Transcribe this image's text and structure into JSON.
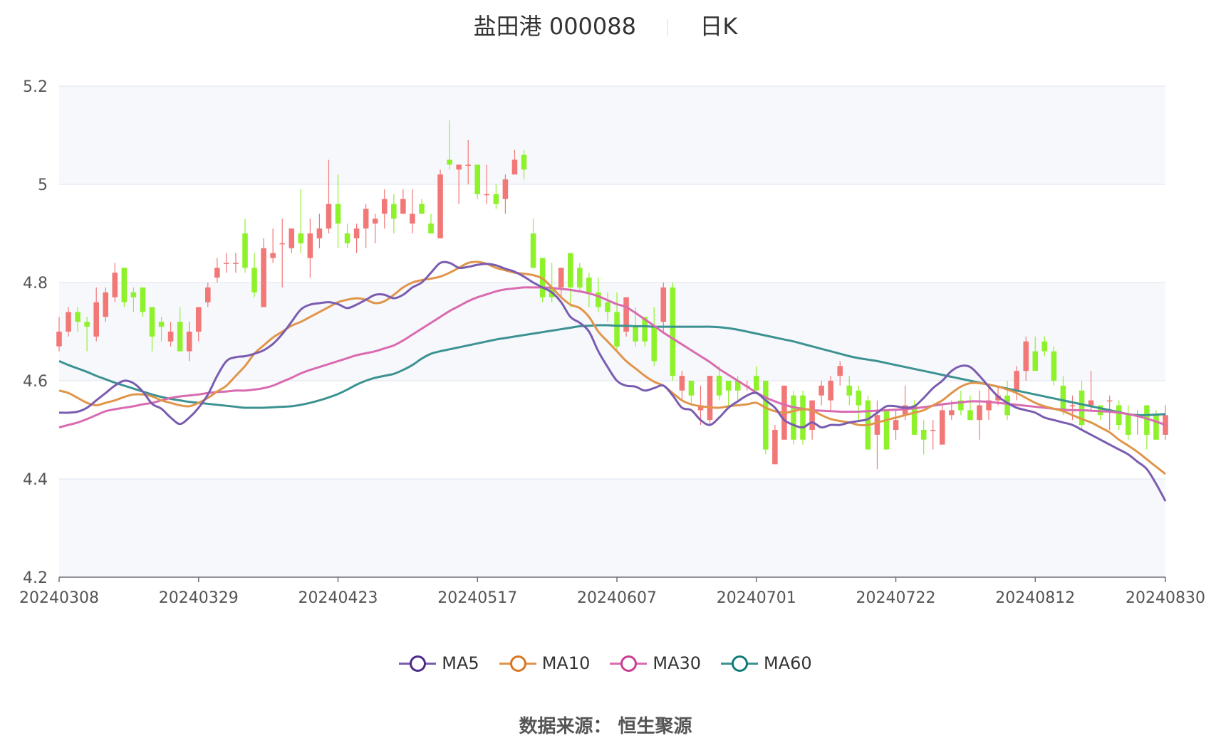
{
  "title": {
    "name": "盐田港 000088",
    "period": "日K"
  },
  "source": "数据来源： 恒生聚源",
  "colors": {
    "up": "#F27777",
    "down": "#8EF22A",
    "MA5": "#7A5CB0",
    "MA10": "#E0954A",
    "MA30": "#D96BB0",
    "MA60": "#3C9292",
    "grid": "#DDE3EE",
    "band": "#F7F8FC"
  },
  "legend": [
    {
      "name": "MA5",
      "color": "#7A5CB0",
      "marker": "#4B2A88"
    },
    {
      "name": "MA10",
      "color": "#E0954A",
      "marker": "#D9751E"
    },
    {
      "name": "MA30",
      "color": "#D96BB0",
      "marker": "#C93E90"
    },
    {
      "name": "MA60",
      "color": "#3C9292",
      "marker": "#137A7A"
    }
  ],
  "chart_data": {
    "type": "candlestick",
    "title": "盐田港 000088",
    "ylim": [
      4.2,
      5.2
    ],
    "yticks": [
      "4.2",
      "4.4",
      "4.6",
      "4.8",
      "5",
      "5.2"
    ],
    "xticks": [
      {
        "label": "20240308",
        "index": 0
      },
      {
        "label": "20240329",
        "index": 15
      },
      {
        "label": "20240423",
        "index": 30
      },
      {
        "label": "20240517",
        "index": 45
      },
      {
        "label": "20240607",
        "index": 60
      },
      {
        "label": "20240701",
        "index": 75
      },
      {
        "label": "20240722",
        "index": 90
      },
      {
        "label": "20240812",
        "index": 105
      },
      {
        "label": "20240830",
        "index": 119
      }
    ],
    "candles": [
      [
        4.67,
        4.7,
        4.73,
        4.66
      ],
      [
        4.7,
        4.74,
        4.75,
        4.69
      ],
      [
        4.74,
        4.72,
        4.75,
        4.7
      ],
      [
        4.72,
        4.71,
        4.73,
        4.66
      ],
      [
        4.69,
        4.76,
        4.79,
        4.68
      ],
      [
        4.73,
        4.78,
        4.79,
        4.72
      ],
      [
        4.77,
        4.82,
        4.84,
        4.76
      ],
      [
        4.83,
        4.76,
        4.83,
        4.75
      ],
      [
        4.78,
        4.77,
        4.79,
        4.74
      ],
      [
        4.79,
        4.74,
        4.79,
        4.73
      ],
      [
        4.75,
        4.69,
        4.75,
        4.66
      ],
      [
        4.72,
        4.71,
        4.73,
        4.68
      ],
      [
        4.68,
        4.7,
        4.72,
        4.67
      ],
      [
        4.72,
        4.66,
        4.75,
        4.66
      ],
      [
        4.66,
        4.7,
        4.72,
        4.64
      ],
      [
        4.7,
        4.75,
        4.75,
        4.68
      ],
      [
        4.76,
        4.79,
        4.8,
        4.75
      ],
      [
        4.81,
        4.83,
        4.85,
        4.8
      ],
      [
        4.84,
        4.84,
        4.86,
        4.82
      ],
      [
        4.84,
        4.84,
        4.86,
        4.82
      ],
      [
        4.9,
        4.83,
        4.93,
        4.82
      ],
      [
        4.83,
        4.78,
        4.86,
        4.77
      ],
      [
        4.75,
        4.87,
        4.89,
        4.75
      ],
      [
        4.85,
        4.86,
        4.91,
        4.84
      ],
      [
        4.88,
        4.88,
        4.93,
        4.79
      ],
      [
        4.87,
        4.91,
        4.91,
        4.86
      ],
      [
        4.9,
        4.88,
        4.99,
        4.86
      ],
      [
        4.85,
        4.9,
        4.93,
        4.81
      ],
      [
        4.89,
        4.91,
        4.94,
        4.87
      ],
      [
        4.91,
        4.96,
        5.05,
        4.9
      ],
      [
        4.96,
        4.92,
        5.02,
        4.87
      ],
      [
        4.9,
        4.88,
        4.92,
        4.87
      ],
      [
        4.89,
        4.91,
        4.92,
        4.86
      ],
      [
        4.91,
        4.95,
        4.96,
        4.87
      ],
      [
        4.92,
        4.93,
        4.94,
        4.88
      ],
      [
        4.94,
        4.97,
        4.99,
        4.91
      ],
      [
        4.96,
        4.93,
        4.98,
        4.9
      ],
      [
        4.94,
        4.97,
        4.99,
        4.94
      ],
      [
        4.92,
        4.94,
        4.99,
        4.9
      ],
      [
        4.96,
        4.94,
        4.97,
        4.94
      ],
      [
        4.92,
        4.9,
        4.94,
        4.9
      ],
      [
        4.89,
        5.02,
        5.03,
        4.89
      ],
      [
        5.05,
        5.04,
        5.13,
        5.03
      ],
      [
        5.03,
        5.04,
        5.04,
        4.96
      ],
      [
        5.04,
        5.04,
        5.09,
        5.0
      ],
      [
        5.04,
        4.98,
        5.04,
        4.97
      ],
      [
        4.98,
        4.98,
        5.04,
        4.96
      ],
      [
        4.98,
        4.96,
        5.0,
        4.95
      ],
      [
        4.97,
        5.01,
        5.02,
        4.94
      ],
      [
        5.02,
        5.05,
        5.07,
        5.03
      ],
      [
        5.06,
        5.03,
        5.07,
        5.01
      ],
      [
        4.9,
        4.83,
        4.93,
        4.83
      ],
      [
        4.85,
        4.77,
        4.85,
        4.76
      ],
      [
        4.79,
        4.77,
        4.84,
        4.76
      ],
      [
        4.79,
        4.83,
        4.83,
        4.77
      ],
      [
        4.86,
        4.79,
        4.86,
        4.75
      ],
      [
        4.83,
        4.79,
        4.84,
        4.78
      ],
      [
        4.81,
        4.78,
        4.82,
        4.75
      ],
      [
        4.78,
        4.75,
        4.81,
        4.74
      ],
      [
        4.76,
        4.74,
        4.78,
        4.72
      ],
      [
        4.74,
        4.67,
        4.78,
        4.66
      ],
      [
        4.7,
        4.77,
        4.77,
        4.69
      ],
      [
        4.71,
        4.68,
        4.75,
        4.67
      ],
      [
        4.73,
        4.68,
        4.73,
        4.67
      ],
      [
        4.71,
        4.64,
        4.75,
        4.63
      ],
      [
        4.72,
        4.79,
        4.8,
        4.7
      ],
      [
        4.79,
        4.61,
        4.8,
        4.6
      ],
      [
        4.58,
        4.61,
        4.62,
        4.56
      ],
      [
        4.6,
        4.57,
        4.6,
        4.55
      ],
      [
        4.54,
        4.55,
        4.59,
        4.51
      ],
      [
        4.52,
        4.61,
        4.61,
        4.51
      ],
      [
        4.61,
        4.57,
        4.63,
        4.56
      ],
      [
        4.6,
        4.58,
        4.6,
        4.55
      ],
      [
        4.6,
        4.58,
        4.61,
        4.56
      ],
      [
        4.59,
        4.59,
        4.6,
        4.58
      ],
      [
        4.61,
        4.58,
        4.63,
        4.58
      ],
      [
        4.6,
        4.46,
        4.6,
        4.45
      ],
      [
        4.43,
        4.5,
        4.51,
        4.43
      ],
      [
        4.48,
        4.59,
        4.59,
        4.48
      ],
      [
        4.57,
        4.48,
        4.58,
        4.47
      ],
      [
        4.57,
        4.48,
        4.58,
        4.47
      ],
      [
        4.5,
        4.56,
        4.56,
        4.48
      ],
      [
        4.57,
        4.59,
        4.6,
        4.55
      ],
      [
        4.56,
        4.6,
        4.61,
        4.54
      ],
      [
        4.61,
        4.63,
        4.64,
        4.59
      ],
      [
        4.59,
        4.57,
        4.61,
        4.55
      ],
      [
        4.58,
        4.55,
        4.59,
        4.52
      ],
      [
        4.56,
        4.46,
        4.57,
        4.46
      ],
      [
        4.49,
        4.53,
        4.56,
        4.42
      ],
      [
        4.54,
        4.46,
        4.54,
        4.46
      ],
      [
        4.5,
        4.52,
        4.54,
        4.48
      ],
      [
        4.53,
        4.55,
        4.59,
        4.52
      ],
      [
        4.55,
        4.49,
        4.56,
        4.49
      ],
      [
        4.5,
        4.48,
        4.52,
        4.45
      ],
      [
        4.5,
        4.5,
        4.52,
        4.46
      ],
      [
        4.47,
        4.54,
        4.55,
        4.47
      ],
      [
        4.53,
        4.54,
        4.56,
        4.52
      ],
      [
        4.56,
        4.54,
        4.58,
        4.53
      ],
      [
        4.54,
        4.52,
        4.57,
        4.52
      ],
      [
        4.52,
        4.55,
        4.58,
        4.48
      ],
      [
        4.54,
        4.56,
        4.59,
        4.52
      ],
      [
        4.56,
        4.57,
        4.59,
        4.55
      ],
      [
        4.57,
        4.53,
        4.6,
        4.52
      ],
      [
        4.58,
        4.62,
        4.63,
        4.56
      ],
      [
        4.62,
        4.68,
        4.69,
        4.6
      ],
      [
        4.66,
        4.62,
        4.69,
        4.62
      ],
      [
        4.68,
        4.66,
        4.69,
        4.65
      ],
      [
        4.66,
        4.6,
        4.67,
        4.59
      ],
      [
        4.59,
        4.54,
        4.61,
        4.53
      ],
      [
        4.55,
        4.55,
        4.57,
        4.52
      ],
      [
        4.58,
        4.51,
        4.6,
        4.5
      ],
      [
        4.55,
        4.56,
        4.62,
        4.54
      ],
      [
        4.55,
        4.53,
        4.55,
        4.52
      ],
      [
        4.56,
        4.56,
        4.57,
        4.5
      ],
      [
        4.55,
        4.51,
        4.56,
        4.5
      ],
      [
        4.53,
        4.49,
        4.55,
        4.48
      ],
      [
        4.53,
        4.53,
        4.54,
        4.49
      ],
      [
        4.55,
        4.49,
        4.55,
        4.46
      ],
      [
        4.53,
        4.48,
        4.54,
        4.48
      ],
      [
        4.49,
        4.53,
        4.55,
        4.48
      ]
    ],
    "moving_averages": {
      "MA5": [
        4.535,
        4.535,
        4.537,
        4.545,
        4.56,
        4.575,
        4.59,
        4.6,
        4.595,
        4.578,
        4.553,
        4.543,
        4.525,
        4.512,
        4.525,
        4.545,
        4.572,
        4.61,
        4.64,
        4.648,
        4.65,
        4.655,
        4.662,
        4.675,
        4.695,
        4.72,
        4.745,
        4.755,
        4.758,
        4.76,
        4.756,
        4.748,
        4.755,
        4.765,
        4.775,
        4.775,
        4.768,
        4.775,
        4.79,
        4.8,
        4.82,
        4.84,
        4.84,
        4.83,
        4.832,
        4.836,
        4.838,
        4.835,
        4.828,
        4.822,
        4.812,
        4.8,
        4.79,
        4.78,
        4.76,
        4.73,
        4.718,
        4.7,
        4.66,
        4.628,
        4.6,
        4.59,
        4.588,
        4.58,
        4.585,
        4.59,
        4.57,
        4.545,
        4.54,
        4.52,
        4.51,
        4.525,
        4.545,
        4.558,
        4.57,
        4.575,
        4.56,
        4.545,
        4.52,
        4.51,
        4.505,
        4.515,
        4.505,
        4.51,
        4.51,
        4.515,
        4.518,
        4.522,
        4.535,
        4.548,
        4.548,
        4.545,
        4.548,
        4.565,
        4.585,
        4.6,
        4.62,
        4.63,
        4.628,
        4.61,
        4.588,
        4.568,
        4.555,
        4.545,
        4.54,
        4.535,
        4.525,
        4.52,
        4.515,
        4.51,
        4.5,
        4.49,
        4.48,
        4.47,
        4.46,
        4.45,
        4.435,
        4.42,
        4.39,
        4.355
      ],
      "MA10": [
        4.58,
        4.575,
        4.565,
        4.555,
        4.55,
        4.555,
        4.56,
        4.567,
        4.572,
        4.572,
        4.568,
        4.56,
        4.555,
        4.55,
        4.548,
        4.555,
        4.565,
        4.578,
        4.59,
        4.61,
        4.63,
        4.655,
        4.672,
        4.688,
        4.7,
        4.712,
        4.72,
        4.73,
        4.74,
        4.75,
        4.76,
        4.765,
        4.768,
        4.765,
        4.758,
        4.762,
        4.775,
        4.79,
        4.8,
        4.805,
        4.808,
        4.812,
        4.82,
        4.83,
        4.84,
        4.842,
        4.838,
        4.83,
        4.825,
        4.82,
        4.818,
        4.815,
        4.808,
        4.79,
        4.77,
        4.755,
        4.748,
        4.73,
        4.7,
        4.68,
        4.66,
        4.64,
        4.625,
        4.61,
        4.598,
        4.59,
        4.575,
        4.56,
        4.552,
        4.548,
        4.546,
        4.545,
        4.548,
        4.55,
        4.552,
        4.555,
        4.545,
        4.538,
        4.535,
        4.538,
        4.542,
        4.54,
        4.53,
        4.522,
        4.518,
        4.515,
        4.51,
        4.51,
        4.515,
        4.52,
        4.525,
        4.53,
        4.535,
        4.54,
        4.55,
        4.56,
        4.575,
        4.588,
        4.595,
        4.595,
        4.592,
        4.588,
        4.582,
        4.575,
        4.565,
        4.555,
        4.548,
        4.543,
        4.538,
        4.53,
        4.522,
        4.515,
        4.505,
        4.495,
        4.48,
        4.468,
        4.455,
        4.44,
        4.425,
        4.41
      ],
      "MA30": [
        4.505,
        4.51,
        4.515,
        4.522,
        4.53,
        4.538,
        4.542,
        4.545,
        4.548,
        4.552,
        4.555,
        4.56,
        4.565,
        4.568,
        4.57,
        4.572,
        4.575,
        4.577,
        4.578,
        4.58,
        4.58,
        4.582,
        4.585,
        4.59,
        4.598,
        4.606,
        4.615,
        4.622,
        4.628,
        4.634,
        4.64,
        4.646,
        4.652,
        4.656,
        4.66,
        4.666,
        4.672,
        4.682,
        4.694,
        4.706,
        4.718,
        4.73,
        4.742,
        4.752,
        4.762,
        4.77,
        4.776,
        4.782,
        4.786,
        4.788,
        4.79,
        4.79,
        4.79,
        4.789,
        4.787,
        4.785,
        4.782,
        4.778,
        4.772,
        4.764,
        4.756,
        4.75,
        4.738,
        4.725,
        4.712,
        4.698,
        4.686,
        4.674,
        4.662,
        4.65,
        4.638,
        4.624,
        4.612,
        4.6,
        4.588,
        4.576,
        4.566,
        4.558,
        4.551,
        4.546,
        4.543,
        4.54,
        4.539,
        4.538,
        4.537,
        4.537,
        4.537,
        4.538,
        4.539,
        4.54,
        4.541,
        4.542,
        4.544,
        4.546,
        4.549,
        4.552,
        4.554,
        4.556,
        4.558,
        4.558,
        4.557,
        4.555,
        4.553,
        4.551,
        4.549,
        4.547,
        4.545,
        4.543,
        4.541,
        4.54,
        4.54,
        4.539,
        4.538,
        4.537,
        4.535,
        4.532,
        4.528,
        4.523,
        4.517,
        4.51
      ],
      "MA60": [
        4.64,
        4.632,
        4.625,
        4.618,
        4.61,
        4.603,
        4.596,
        4.59,
        4.584,
        4.578,
        4.572,
        4.567,
        4.563,
        4.56,
        4.557,
        4.555,
        4.553,
        4.551,
        4.549,
        4.547,
        4.545,
        4.545,
        4.545,
        4.546,
        4.547,
        4.548,
        4.551,
        4.555,
        4.56,
        4.566,
        4.573,
        4.582,
        4.592,
        4.6,
        4.606,
        4.61,
        4.614,
        4.622,
        4.632,
        4.645,
        4.655,
        4.66,
        4.664,
        4.668,
        4.672,
        4.676,
        4.68,
        4.684,
        4.687,
        4.69,
        4.693,
        4.696,
        4.699,
        4.702,
        4.705,
        4.708,
        4.711,
        4.712,
        4.713,
        4.713,
        4.712,
        4.712,
        4.711,
        4.711,
        4.71,
        4.71,
        4.71,
        4.71,
        4.71,
        4.71,
        4.71,
        4.709,
        4.707,
        4.704,
        4.7,
        4.696,
        4.692,
        4.688,
        4.684,
        4.68,
        4.675,
        4.67,
        4.665,
        4.66,
        4.655,
        4.65,
        4.646,
        4.643,
        4.64,
        4.636,
        4.632,
        4.628,
        4.624,
        4.62,
        4.616,
        4.612,
        4.608,
        4.604,
        4.6,
        4.596,
        4.592,
        4.588,
        4.584,
        4.58,
        4.576,
        4.572,
        4.568,
        4.564,
        4.56,
        4.556,
        4.552,
        4.548,
        4.544,
        4.54,
        4.536,
        4.532,
        4.53,
        4.53,
        4.531,
        4.532
      ]
    },
    "legend_position": "bottom",
    "grid": true
  }
}
